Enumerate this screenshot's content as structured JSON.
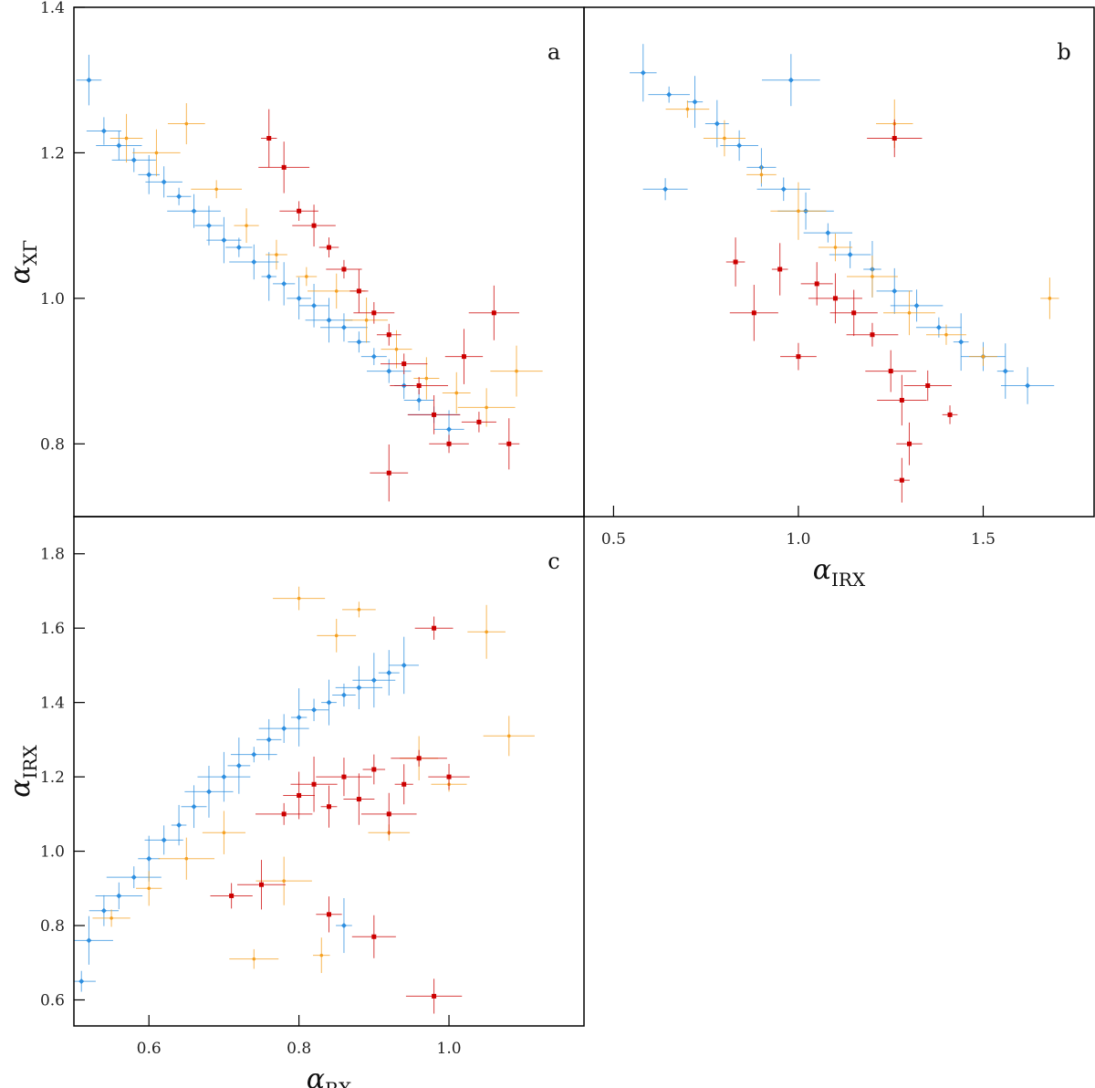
{
  "colors": {
    "blue": "#2e8fe0",
    "orange": "#f5a020",
    "red": "#cc0000",
    "axis": "#000000"
  },
  "chart_data": [
    {
      "type": "scatter",
      "panel": "a",
      "xlim": [
        0.5,
        1.18
      ],
      "ylim": [
        0.7,
        1.4
      ],
      "x_ticks": [],
      "y_ticks": [
        "0.8",
        "1.0",
        "1.2",
        "1.4"
      ],
      "xlabel_symbol": "",
      "xlabel_sub": "",
      "ylabel_symbol": "α",
      "ylabel_sub": "XΓ",
      "series": [
        {
          "color_key": "blue",
          "marker": "diamond",
          "points": [
            [
              0.52,
              1.3
            ],
            [
              0.54,
              1.23
            ],
            [
              0.56,
              1.21
            ],
            [
              0.58,
              1.19
            ],
            [
              0.6,
              1.17
            ],
            [
              0.62,
              1.16
            ],
            [
              0.64,
              1.14
            ],
            [
              0.66,
              1.12
            ],
            [
              0.68,
              1.1
            ],
            [
              0.7,
              1.08
            ],
            [
              0.72,
              1.07
            ],
            [
              0.74,
              1.05
            ],
            [
              0.76,
              1.03
            ],
            [
              0.78,
              1.02
            ],
            [
              0.8,
              1.0
            ],
            [
              0.82,
              0.99
            ],
            [
              0.84,
              0.97
            ],
            [
              0.86,
              0.96
            ],
            [
              0.88,
              0.94
            ],
            [
              0.9,
              0.92
            ],
            [
              0.92,
              0.9
            ],
            [
              0.94,
              0.88
            ],
            [
              0.96,
              0.86
            ],
            [
              0.98,
              0.84
            ],
            [
              1.0,
              0.82
            ]
          ]
        },
        {
          "color_key": "orange",
          "marker": "cross",
          "points": [
            [
              0.57,
              1.22
            ],
            [
              0.61,
              1.2
            ],
            [
              0.65,
              1.24
            ],
            [
              0.69,
              1.15
            ],
            [
              0.73,
              1.1
            ],
            [
              0.77,
              1.06
            ],
            [
              0.81,
              1.03
            ],
            [
              0.85,
              1.01
            ],
            [
              0.89,
              0.97
            ],
            [
              0.93,
              0.93
            ],
            [
              0.97,
              0.89
            ],
            [
              1.01,
              0.87
            ],
            [
              1.05,
              0.85
            ],
            [
              1.09,
              0.9
            ]
          ]
        },
        {
          "color_key": "red",
          "marker": "square",
          "points": [
            [
              0.76,
              1.22
            ],
            [
              0.78,
              1.18
            ],
            [
              0.8,
              1.12
            ],
            [
              0.82,
              1.1
            ],
            [
              0.84,
              1.07
            ],
            [
              0.86,
              1.04
            ],
            [
              0.88,
              1.01
            ],
            [
              0.9,
              0.98
            ],
            [
              0.92,
              0.95
            ],
            [
              0.94,
              0.91
            ],
            [
              0.96,
              0.88
            ],
            [
              0.98,
              0.84
            ],
            [
              1.0,
              0.8
            ],
            [
              1.02,
              0.92
            ],
            [
              1.04,
              0.83
            ],
            [
              1.06,
              0.98
            ],
            [
              1.08,
              0.8
            ],
            [
              0.92,
              0.76
            ]
          ]
        }
      ]
    },
    {
      "type": "scatter",
      "panel": "b",
      "xlim": [
        0.42,
        1.8
      ],
      "ylim": [
        0.7,
        1.4
      ],
      "x_ticks": [
        "0.5",
        "1.0",
        "1.5"
      ],
      "y_ticks": [],
      "xlabel_symbol": "α",
      "xlabel_sub": "IRX",
      "ylabel_symbol": "",
      "ylabel_sub": "",
      "series": [
        {
          "color_key": "blue",
          "marker": "diamond",
          "points": [
            [
              0.58,
              1.31
            ],
            [
              0.65,
              1.28
            ],
            [
              0.72,
              1.27
            ],
            [
              0.78,
              1.24
            ],
            [
              0.84,
              1.21
            ],
            [
              0.9,
              1.18
            ],
            [
              0.96,
              1.15
            ],
            [
              1.02,
              1.12
            ],
            [
              1.08,
              1.09
            ],
            [
              1.14,
              1.06
            ],
            [
              1.2,
              1.04
            ],
            [
              1.26,
              1.01
            ],
            [
              1.32,
              0.99
            ],
            [
              1.38,
              0.96
            ],
            [
              1.44,
              0.94
            ],
            [
              1.5,
              0.92
            ],
            [
              1.56,
              0.9
            ],
            [
              1.62,
              0.88
            ],
            [
              0.64,
              1.15
            ],
            [
              0.98,
              1.3
            ]
          ]
        },
        {
          "color_key": "orange",
          "marker": "cross",
          "points": [
            [
              0.7,
              1.26
            ],
            [
              0.8,
              1.22
            ],
            [
              0.9,
              1.17
            ],
            [
              1.0,
              1.12
            ],
            [
              1.1,
              1.07
            ],
            [
              1.2,
              1.03
            ],
            [
              1.3,
              0.98
            ],
            [
              1.4,
              0.95
            ],
            [
              1.5,
              0.92
            ],
            [
              1.68,
              1.0
            ],
            [
              1.26,
              1.24
            ]
          ]
        },
        {
          "color_key": "red",
          "marker": "square",
          "points": [
            [
              0.83,
              1.05
            ],
            [
              0.88,
              0.98
            ],
            [
              0.95,
              1.04
            ],
            [
              1.0,
              0.92
            ],
            [
              1.05,
              1.02
            ],
            [
              1.1,
              1.0
            ],
            [
              1.15,
              0.98
            ],
            [
              1.2,
              0.95
            ],
            [
              1.25,
              0.9
            ],
            [
              1.28,
              0.86
            ],
            [
              1.3,
              0.8
            ],
            [
              1.28,
              0.75
            ],
            [
              1.26,
              1.22
            ],
            [
              1.35,
              0.88
            ],
            [
              1.41,
              0.84
            ]
          ]
        }
      ]
    },
    {
      "type": "scatter",
      "panel": "c",
      "xlim": [
        0.5,
        1.18
      ],
      "ylim": [
        0.53,
        1.9
      ],
      "x_ticks": [
        "0.6",
        "0.8",
        "1.0"
      ],
      "y_ticks": [
        "0.6",
        "0.8",
        "1.0",
        "1.2",
        "1.4",
        "1.6",
        "1.8"
      ],
      "xlabel_symbol": "α",
      "xlabel_sub": "RX",
      "ylabel_symbol": "α",
      "ylabel_sub": "IRX",
      "series": [
        {
          "color_key": "blue",
          "marker": "diamond",
          "points": [
            [
              0.51,
              0.65
            ],
            [
              0.52,
              0.76
            ],
            [
              0.54,
              0.84
            ],
            [
              0.56,
              0.88
            ],
            [
              0.58,
              0.93
            ],
            [
              0.6,
              0.98
            ],
            [
              0.62,
              1.03
            ],
            [
              0.64,
              1.07
            ],
            [
              0.66,
              1.12
            ],
            [
              0.68,
              1.16
            ],
            [
              0.7,
              1.2
            ],
            [
              0.72,
              1.23
            ],
            [
              0.74,
              1.26
            ],
            [
              0.76,
              1.3
            ],
            [
              0.78,
              1.33
            ],
            [
              0.8,
              1.36
            ],
            [
              0.82,
              1.38
            ],
            [
              0.84,
              1.4
            ],
            [
              0.86,
              1.42
            ],
            [
              0.88,
              1.44
            ],
            [
              0.9,
              1.46
            ],
            [
              0.92,
              1.48
            ],
            [
              0.94,
              1.5
            ],
            [
              0.86,
              0.8
            ]
          ]
        },
        {
          "color_key": "orange",
          "marker": "cross",
          "points": [
            [
              0.55,
              0.82
            ],
            [
              0.6,
              0.9
            ],
            [
              0.65,
              0.98
            ],
            [
              0.7,
              1.05
            ],
            [
              0.74,
              0.71
            ],
            [
              0.78,
              0.92
            ],
            [
              0.8,
              1.68
            ],
            [
              0.83,
              0.72
            ],
            [
              0.85,
              1.58
            ],
            [
              0.88,
              1.65
            ],
            [
              0.92,
              1.05
            ],
            [
              0.96,
              1.25
            ],
            [
              1.0,
              1.18
            ],
            [
              1.05,
              1.59
            ],
            [
              1.08,
              1.31
            ]
          ]
        },
        {
          "color_key": "red",
          "marker": "square",
          "points": [
            [
              0.71,
              0.88
            ],
            [
              0.75,
              0.91
            ],
            [
              0.78,
              1.1
            ],
            [
              0.8,
              1.15
            ],
            [
              0.82,
              1.18
            ],
            [
              0.84,
              1.12
            ],
            [
              0.86,
              1.2
            ],
            [
              0.88,
              1.14
            ],
            [
              0.9,
              1.22
            ],
            [
              0.92,
              1.1
            ],
            [
              0.94,
              1.18
            ],
            [
              0.96,
              1.25
            ],
            [
              0.98,
              1.6
            ],
            [
              1.0,
              1.2
            ],
            [
              0.9,
              0.77
            ],
            [
              0.98,
              0.61
            ],
            [
              0.84,
              0.83
            ]
          ]
        }
      ]
    }
  ]
}
